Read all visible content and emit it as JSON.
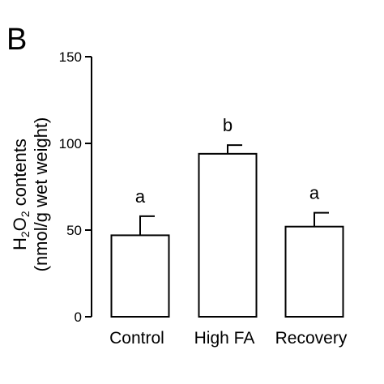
{
  "panel_label": "B",
  "chart_data": {
    "type": "bar",
    "categories": [
      "Control",
      "High FA",
      "Recovery"
    ],
    "values": [
      47,
      94,
      52
    ],
    "errors": [
      11,
      5,
      8
    ],
    "significance": [
      "a",
      "b",
      "a"
    ],
    "ylabel_line1_prefix": "H",
    "ylabel_sub1": "2",
    "ylabel_mid": "O",
    "ylabel_sub2": "2",
    "ylabel_line1_suffix": " contents",
    "ylabel_line2": "(nmol/g wet weight)",
    "ylim": [
      0,
      150
    ],
    "yticks": [
      0,
      50,
      100,
      150
    ],
    "grid": false,
    "colors": {
      "bar_fill": "#ffffff",
      "bar_stroke": "#000000",
      "axis": "#000000"
    }
  }
}
